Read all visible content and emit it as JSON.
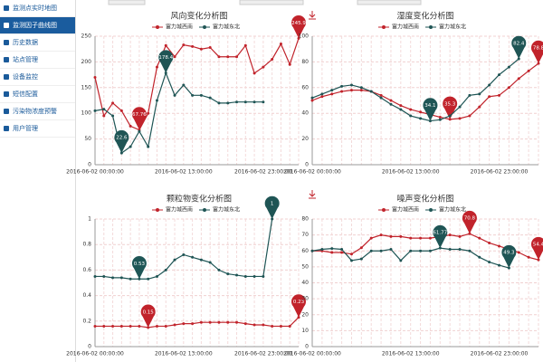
{
  "sidebar": {
    "items": [
      "监测点实时地图",
      "监测因子曲线图",
      "历史数据",
      "站点管理",
      "设备监控",
      "短信配置",
      "污染物浓度预警",
      "用户管理"
    ],
    "active": 1
  },
  "chart_data": [
    {
      "type": "line",
      "title": "风向变化分析图",
      "grid": true,
      "legend": "top",
      "categories": [
        "2016-06-02 00:00:00",
        null,
        null,
        null,
        null,
        null,
        null,
        null,
        null,
        null,
        "2016-06-02 13:00:00",
        null,
        null,
        null,
        null,
        null,
        null,
        null,
        null,
        "2016-06-02 23:00:00",
        null,
        null,
        null,
        null
      ],
      "ylim": [
        0,
        250
      ],
      "yticks": [
        0,
        50,
        100,
        150,
        200,
        250
      ],
      "series": [
        {
          "name": "富力城西南",
          "color": "#c1232b",
          "values": [
            170,
            95,
            120,
            105,
            75,
            67.76,
            100,
            190,
            232,
            210,
            233,
            230,
            225,
            228,
            210,
            210,
            210,
            232,
            178,
            190,
            205,
            235,
            195,
            245.9
          ],
          "value_labels": [
            null,
            null,
            null,
            null,
            null,
            "67.76",
            null,
            null,
            null,
            null,
            null,
            null,
            null,
            null,
            null,
            null,
            null,
            null,
            null,
            null,
            null,
            null,
            null,
            "245.9"
          ]
        },
        {
          "name": "富力城东北",
          "color": "#1f5555",
          "values": [
            105,
            108,
            95,
            22.6,
            35,
            65,
            35,
            125,
            178.4,
            135,
            155,
            135,
            135,
            130,
            120,
            120,
            122,
            122,
            122,
            122,
            null,
            null,
            null,
            null
          ],
          "value_labels": [
            null,
            null,
            null,
            "22.6",
            null,
            null,
            null,
            null,
            "178.4",
            null,
            null,
            null,
            null,
            null,
            null,
            null,
            null,
            null,
            null,
            null,
            null,
            null,
            null,
            null
          ]
        }
      ]
    },
    {
      "type": "line",
      "title": "湿度变化分析图",
      "grid": true,
      "legend": "top",
      "categories": [
        "2016-06-02 00:00:00",
        null,
        null,
        null,
        null,
        null,
        null,
        null,
        null,
        null,
        "2016-06-02 13:00:00",
        null,
        null,
        null,
        null,
        null,
        null,
        null,
        null,
        "2016-06-02 23:00:00",
        null,
        null,
        null,
        null
      ],
      "ylim": [
        0,
        100
      ],
      "yticks": [
        0,
        20,
        40,
        60,
        80,
        100
      ],
      "series": [
        {
          "name": "富力城西南",
          "color": "#c1232b",
          "values": [
            50,
            53,
            55,
            57,
            58,
            58,
            57,
            54,
            50,
            46,
            43,
            41,
            39,
            37,
            35.3,
            36,
            38,
            45,
            53,
            54,
            60,
            67,
            73,
            78.8
          ],
          "value_labels": [
            null,
            null,
            null,
            null,
            null,
            null,
            null,
            null,
            null,
            null,
            null,
            null,
            null,
            null,
            "35.3",
            null,
            null,
            null,
            null,
            null,
            null,
            null,
            null,
            "78.8"
          ]
        },
        {
          "name": "富力城东北",
          "color": "#1f5555",
          "values": [
            52,
            55,
            58,
            61,
            62,
            60,
            57,
            52,
            47,
            43,
            38,
            36,
            34.1,
            35,
            38,
            45,
            54,
            55,
            62,
            70,
            76,
            82.4,
            null,
            null
          ],
          "value_labels": [
            null,
            null,
            null,
            null,
            null,
            null,
            null,
            null,
            null,
            null,
            null,
            null,
            "34.1",
            null,
            null,
            null,
            null,
            null,
            null,
            null,
            null,
            "82.4",
            null,
            null
          ]
        }
      ]
    },
    {
      "type": "line",
      "title": "颗粒物变化分析图",
      "grid": true,
      "legend": "top",
      "categories": [
        "2016-06-02 00:00:00",
        null,
        null,
        null,
        null,
        null,
        null,
        null,
        null,
        null,
        "2016-06-02 13:00:00",
        null,
        null,
        null,
        null,
        null,
        null,
        null,
        null,
        "2016-06-02 23:00:00",
        null,
        null,
        null,
        null
      ],
      "ylim": [
        0,
        1
      ],
      "yticks": [
        0,
        0.2,
        0.4,
        0.6,
        0.8,
        1
      ],
      "series": [
        {
          "name": "富力城西南",
          "color": "#c1232b",
          "values": [
            0.16,
            0.16,
            0.16,
            0.16,
            0.16,
            0.16,
            0.15,
            0.16,
            0.16,
            0.17,
            0.18,
            0.18,
            0.19,
            0.19,
            0.19,
            0.19,
            0.19,
            0.18,
            0.17,
            0.17,
            0.16,
            0.16,
            0.16,
            0.23
          ],
          "value_labels": [
            null,
            null,
            null,
            null,
            null,
            null,
            "0.15",
            null,
            null,
            null,
            null,
            null,
            null,
            null,
            null,
            null,
            null,
            null,
            null,
            null,
            null,
            null,
            null,
            "0.23"
          ]
        },
        {
          "name": "富力城东北",
          "color": "#1f5555",
          "values": [
            0.55,
            0.55,
            0.54,
            0.54,
            0.53,
            0.53,
            0.53,
            0.55,
            0.6,
            0.68,
            0.72,
            0.7,
            0.68,
            0.66,
            0.6,
            0.57,
            0.56,
            0.55,
            0.55,
            0.55,
            1,
            null,
            null,
            null
          ],
          "value_labels": [
            null,
            null,
            null,
            null,
            null,
            "0.53",
            null,
            null,
            null,
            null,
            null,
            null,
            null,
            null,
            null,
            null,
            null,
            null,
            null,
            null,
            "1",
            null,
            null,
            null
          ]
        }
      ]
    },
    {
      "type": "line",
      "title": "噪声变化分析图",
      "grid": true,
      "legend": "top",
      "categories": [
        "2016-06-02 00:00:00",
        null,
        null,
        null,
        null,
        null,
        null,
        null,
        null,
        null,
        "2016-06-02 13:00:00",
        null,
        null,
        null,
        null,
        null,
        null,
        null,
        null,
        "2016-06-02 23:00:00",
        null,
        null,
        null,
        null
      ],
      "ylim": [
        0,
        80
      ],
      "yticks": [
        0,
        10,
        20,
        30,
        40,
        50,
        60,
        70,
        80
      ],
      "series": [
        {
          "name": "富力城西南",
          "color": "#c1232b",
          "values": [
            60,
            60,
            59,
            59,
            58,
            62,
            68,
            70,
            69,
            69,
            68,
            68,
            68,
            69,
            70,
            69,
            70.8,
            68,
            65,
            63,
            61,
            59,
            56,
            54.4
          ],
          "value_labels": [
            null,
            null,
            null,
            null,
            null,
            null,
            null,
            null,
            null,
            null,
            null,
            null,
            null,
            null,
            null,
            null,
            "70.8",
            null,
            null,
            null,
            null,
            null,
            null,
            "54.4"
          ]
        },
        {
          "name": "富力城东北",
          "color": "#1f5555",
          "values": [
            60,
            61,
            61.5,
            61,
            54,
            55,
            60,
            60,
            61,
            54,
            60,
            60,
            60,
            61.77,
            61,
            61,
            60,
            56,
            53,
            51,
            49.3,
            null,
            null,
            null
          ],
          "value_labels": [
            null,
            null,
            null,
            null,
            null,
            null,
            null,
            null,
            null,
            null,
            null,
            null,
            null,
            "61.77",
            null,
            null,
            null,
            null,
            null,
            null,
            "49.3",
            null,
            null,
            null
          ]
        }
      ]
    }
  ]
}
